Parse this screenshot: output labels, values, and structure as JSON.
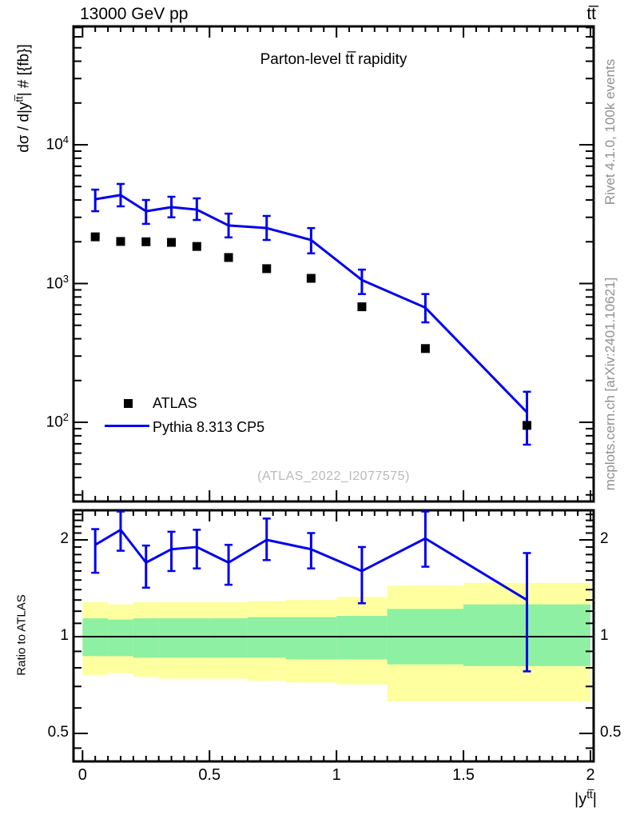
{
  "header": {
    "left": "13000 GeV pp",
    "right": "tt̅"
  },
  "title": "Parton-level tt̅ rapidity",
  "watermark": "(ATLAS_2022_I2077575)",
  "side_texts": {
    "top": "Rivet 4.1.0,  100k events",
    "bottom": "mcplots.cern.ch [arXiv:2401.10621]"
  },
  "axes": {
    "y_title": {
      "prefix": "dσ / d|y",
      "sup": "tt̅",
      "suffix": "| # [{fb}]"
    },
    "x_title": {
      "prefix": "|y",
      "sup": "tt̅",
      "suffix": "|"
    },
    "ratio_y_title": "Ratio to ATLAS",
    "y_tick_base": "10",
    "y_major_exponents": [
      4,
      3,
      2
    ],
    "y_range": [
      26,
      72000
    ],
    "y_scale": "log",
    "x_major_ticks": [
      0,
      0.5,
      1,
      1.5,
      2
    ],
    "x_major_labels": [
      "0",
      "0.5",
      "1",
      "1.5",
      "2"
    ],
    "x_minor_step": 0.05,
    "x_range": [
      -0.036,
      2.013
    ],
    "ratio_scale": "log",
    "ratio_major_ticks": [
      2,
      1,
      0.5
    ],
    "ratio_major_labels": [
      "2",
      "1",
      "0.5"
    ],
    "ratio_minor_ticks": [
      0.45,
      0.6,
      0.7,
      0.8,
      0.9,
      1.1,
      1.2,
      1.3,
      1.4,
      1.5,
      1.6,
      1.7,
      1.8,
      1.9,
      2.1,
      2.2,
      2.3,
      2.4
    ],
    "ratio_range": [
      0.41,
      2.47
    ]
  },
  "legend": {
    "items": [
      {
        "label": "ATLAS",
        "marker": "filled-square",
        "color": "#000000"
      },
      {
        "label": "Pythia 8.313 CP5",
        "marker": "line",
        "color": "#0000ee"
      }
    ]
  },
  "colors": {
    "pythia_blue": "#0000ee",
    "atlas_black": "#000000",
    "band_outer_yellow": "#feff9e",
    "band_inner_green": "#8df0a2",
    "side_text_gray": "#909090",
    "watermark_gray": "#b9b9b9",
    "axis_black": "#000000"
  },
  "chart_data": {
    "type": "line",
    "title": "Parton-level ttbar rapidity",
    "xlabel": "|y^tt|",
    "ylabel": "dsigma / d|y^tt| # [fb]",
    "ylim": [
      26,
      72000
    ],
    "xlim": [
      -0.036,
      2.013
    ],
    "y_scale": "log",
    "grid": false,
    "legend_position": "lower-left-inside",
    "x_bin_edges": [
      0,
      0.1,
      0.2,
      0.3,
      0.4,
      0.5,
      0.65,
      0.8,
      1.0,
      1.2,
      1.5,
      2.0
    ],
    "x_centers": [
      0.05,
      0.15,
      0.25,
      0.35,
      0.45,
      0.575,
      0.725,
      0.9,
      1.1,
      1.35,
      1.75
    ],
    "series": [
      {
        "name": "ATLAS",
        "type": "scatter",
        "marker": "filled-square",
        "color": "#000000",
        "values": [
          2170,
          2010,
          2000,
          1980,
          1850,
          1540,
          1280,
          1090,
          680,
          340,
          95
        ]
      },
      {
        "name": "Pythia 8.313 CP5",
        "type": "line",
        "color": "#0000ee",
        "values": [
          4050,
          4340,
          3320,
          3550,
          3410,
          2620,
          2510,
          2060,
          1060,
          670,
          118
        ],
        "err_lo": [
          3320,
          3600,
          2690,
          3000,
          2870,
          2150,
          2060,
          1650,
          840,
          525,
          69
        ],
        "err_hi": [
          4750,
          5220,
          4000,
          4220,
          4110,
          3190,
          3070,
          2510,
          1260,
          840,
          166
        ]
      }
    ],
    "ratio_panel": {
      "ylabel": "Ratio to ATLAS",
      "y_scale": "log",
      "ylim": [
        0.41,
        2.47
      ],
      "reference_line": 1,
      "series_name": "Pythia 8.313 CP5 / ATLAS",
      "values": [
        1.93,
        2.15,
        1.7,
        1.87,
        1.9,
        1.7,
        2.0,
        1.87,
        1.6,
        2.02,
        1.3
      ],
      "err_lo": [
        1.58,
        1.85,
        1.42,
        1.6,
        1.63,
        1.45,
        1.73,
        1.63,
        1.27,
        1.65,
        0.78
      ],
      "err_hi": [
        2.16,
        2.45,
        1.92,
        2.12,
        2.15,
        1.93,
        2.33,
        2.1,
        1.9,
        2.45,
        1.82
      ],
      "uncertainty_bands": [
        {
          "x": [
            0.0,
            0.1
          ],
          "outer": [
            0.76,
            1.28
          ],
          "inner": [
            0.87,
            1.14
          ]
        },
        {
          "x": [
            0.1,
            0.2
          ],
          "outer": [
            0.77,
            1.26
          ],
          "inner": [
            0.87,
            1.13
          ]
        },
        {
          "x": [
            0.2,
            0.3
          ],
          "outer": [
            0.75,
            1.28
          ],
          "inner": [
            0.86,
            1.14
          ]
        },
        {
          "x": [
            0.3,
            0.4
          ],
          "outer": [
            0.74,
            1.28
          ],
          "inner": [
            0.86,
            1.14
          ]
        },
        {
          "x": [
            0.4,
            0.5
          ],
          "outer": [
            0.74,
            1.28
          ],
          "inner": [
            0.86,
            1.14
          ]
        },
        {
          "x": [
            0.5,
            0.65
          ],
          "outer": [
            0.74,
            1.28
          ],
          "inner": [
            0.86,
            1.14
          ]
        },
        {
          "x": [
            0.65,
            0.8
          ],
          "outer": [
            0.73,
            1.29
          ],
          "inner": [
            0.86,
            1.15
          ]
        },
        {
          "x": [
            0.8,
            1.0
          ],
          "outer": [
            0.72,
            1.3
          ],
          "inner": [
            0.85,
            1.15
          ]
        },
        {
          "x": [
            1.0,
            1.2
          ],
          "outer": [
            0.71,
            1.33
          ],
          "inner": [
            0.85,
            1.16
          ]
        },
        {
          "x": [
            1.2,
            1.5
          ],
          "outer": [
            0.63,
            1.44
          ],
          "inner": [
            0.82,
            1.22
          ]
        },
        {
          "x": [
            1.5,
            2.0
          ],
          "outer": [
            0.63,
            1.47
          ],
          "inner": [
            0.81,
            1.26
          ]
        }
      ]
    }
  }
}
